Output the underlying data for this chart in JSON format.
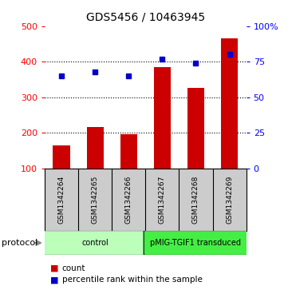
{
  "title": "GDS5456 / 10463945",
  "samples": [
    "GSM1342264",
    "GSM1342265",
    "GSM1342266",
    "GSM1342267",
    "GSM1342268",
    "GSM1342269"
  ],
  "counts": [
    165,
    215,
    195,
    385,
    325,
    465
  ],
  "percentile_ranks": [
    65,
    68,
    65,
    77,
    74,
    80
  ],
  "bar_color": "#cc0000",
  "dot_color": "#0000cc",
  "left_ylim": [
    100,
    500
  ],
  "right_ylim": [
    0,
    100
  ],
  "left_yticks": [
    100,
    200,
    300,
    400,
    500
  ],
  "right_yticks": [
    0,
    25,
    50,
    75,
    100
  ],
  "right_yticklabels": [
    "0",
    "25",
    "50",
    "75",
    "100%"
  ],
  "grid_values": [
    200,
    300,
    400
  ],
  "protocol_groups": [
    {
      "label": "control",
      "samples": [
        0,
        1,
        2
      ],
      "color": "#bbffbb"
    },
    {
      "label": "pMIG-TGIF1 transduced",
      "samples": [
        3,
        4,
        5
      ],
      "color": "#44ee44"
    }
  ],
  "protocol_label": "protocol",
  "legend_items": [
    {
      "color": "#cc0000",
      "marker": "s",
      "label": "count"
    },
    {
      "color": "#0000cc",
      "marker": "s",
      "label": "percentile rank within the sample"
    }
  ],
  "background_color": "#ffffff",
  "sample_box_color": "#cccccc",
  "bar_bottom": 100
}
